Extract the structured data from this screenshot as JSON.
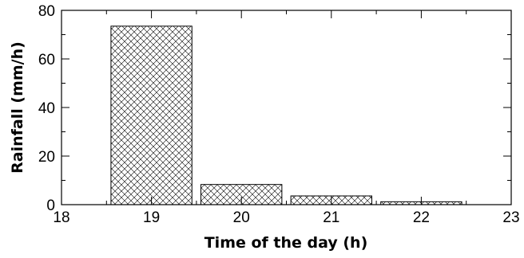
{
  "chart_data": {
    "type": "bar",
    "x": [
      19,
      20,
      21,
      22
    ],
    "values": [
      73.5,
      8.3,
      3.6,
      1.2
    ],
    "xlabel": "Time of the day (h)",
    "ylabel": "Rainfall (mm/h)",
    "xlim": [
      18,
      23
    ],
    "ylim": [
      0,
      80
    ],
    "xticks": [
      "18",
      "19",
      "20",
      "21",
      "22",
      "23"
    ],
    "yticks": [
      "0",
      "20",
      "40",
      "60",
      "80"
    ],
    "bar_fill": "crosshatch",
    "bar_color": "#000000",
    "grid": false,
    "legend": "none"
  }
}
